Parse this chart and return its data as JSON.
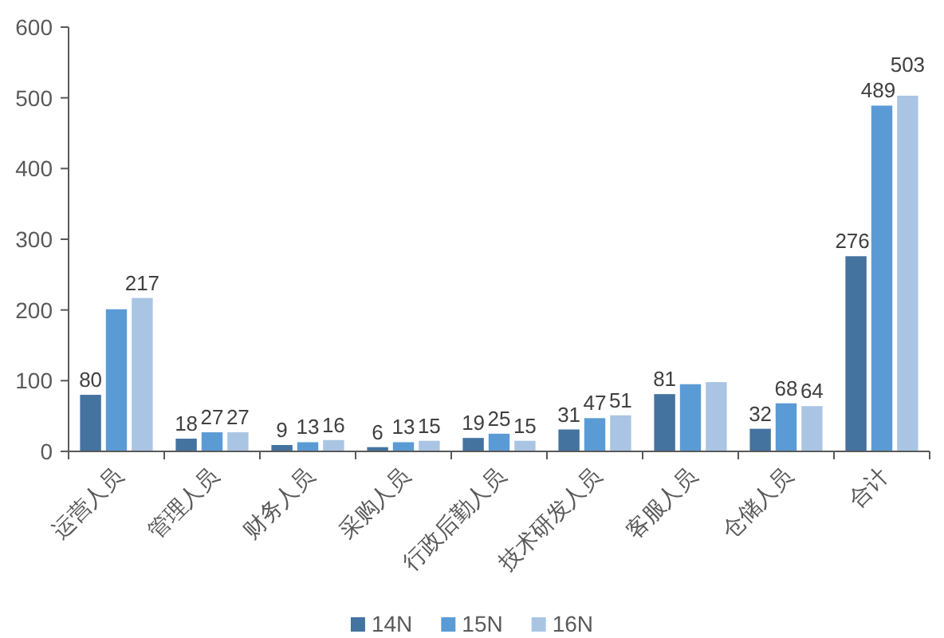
{
  "chart_data": {
    "type": "bar",
    "categories": [
      "运营人员",
      "管理人员",
      "财务人员",
      "采购人员",
      "行政后勤人员",
      "技术研发人员",
      "客服人员",
      "仓储人员",
      "合计"
    ],
    "series": [
      {
        "name": "14N",
        "color": "#44739f",
        "values": [
          80,
          18,
          9,
          6,
          19,
          31,
          81,
          32,
          276
        ],
        "value_labels": [
          "80",
          "18",
          "9",
          "6",
          "19",
          "31",
          "81",
          "32",
          "276"
        ]
      },
      {
        "name": "15N",
        "color": "#5b9bd5",
        "values": [
          201,
          27,
          13,
          13,
          25,
          47,
          95,
          68,
          489
        ],
        "value_labels": [
          null,
          "27",
          "13",
          "13",
          "25",
          "47",
          null,
          "68",
          "489"
        ]
      },
      {
        "name": "16N",
        "color": "#aac5e4",
        "values": [
          217,
          27,
          16,
          15,
          15,
          51,
          98,
          64,
          503
        ],
        "value_labels": [
          "217",
          "27",
          "16",
          "15",
          "15",
          "51",
          null,
          "64",
          "503"
        ]
      }
    ],
    "ylim": [
      0,
      600
    ],
    "yticks": [
      0,
      100,
      200,
      300,
      400,
      500,
      600
    ],
    "legend": "bottom"
  }
}
